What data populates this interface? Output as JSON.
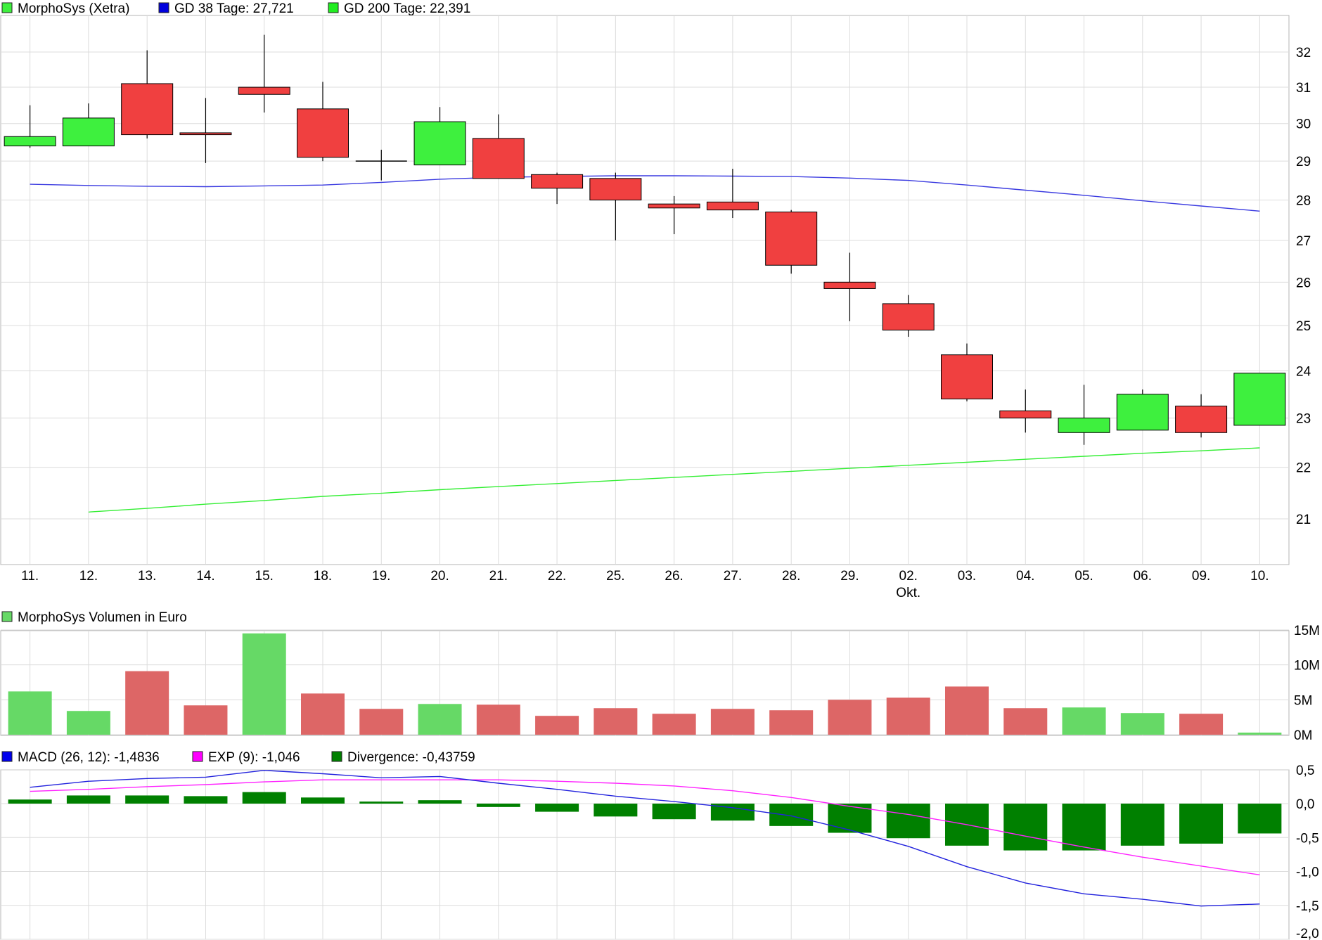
{
  "colors": {
    "up": "#3ef03e",
    "down": "#f04040",
    "gd38": "#3a3ae0",
    "gd200": "#33ee33",
    "vol_up": "#66d966",
    "vol_down": "#dd6666",
    "macd": "#2222dd",
    "exp": "#ff22ff",
    "divergence": "#008000",
    "legend_macd": "#0000ee",
    "legend_exp": "#ff00ff",
    "legend_div": "#008000",
    "grid": "#dcdcdc",
    "frame": "#b4b4b4"
  },
  "chart_data": [
    {
      "type": "candlestick",
      "legend": [
        {
          "label": "MorphoSys (Xetra)",
          "color": "#3ef03e"
        },
        {
          "label": "GD 38 Tage: 27,721",
          "color": "#0000dd"
        },
        {
          "label": "GD 200 Tage: 22,391",
          "color": "#22ee22"
        }
      ],
      "categories": [
        "11.",
        "12.",
        "13.",
        "14.",
        "15.",
        "18.",
        "19.",
        "20.",
        "21.",
        "22.",
        "25.",
        "26.",
        "27.",
        "28.",
        "29.",
        "02.",
        "03.",
        "04.",
        "05.",
        "06.",
        "09.",
        "10."
      ],
      "category_sublabels": {
        "15": "Okt."
      },
      "yticks": [
        "21",
        "22",
        "23",
        "24",
        "25",
        "26",
        "27",
        "28",
        "29",
        "30",
        "31",
        "32"
      ],
      "ylim": [
        20,
        33
      ],
      "y_scale": "log",
      "candles": [
        {
          "open": 29.4,
          "high": 30.5,
          "low": 29.35,
          "close": 29.65
        },
        {
          "open": 29.4,
          "high": 30.55,
          "low": 29.4,
          "close": 30.15
        },
        {
          "open": 31.1,
          "high": 32.05,
          "low": 29.6,
          "close": 29.7
        },
        {
          "open": 29.75,
          "high": 30.7,
          "low": 28.95,
          "close": 29.7
        },
        {
          "open": 31.0,
          "high": 32.5,
          "low": 30.3,
          "close": 30.8
        },
        {
          "open": 30.4,
          "high": 31.15,
          "low": 29.0,
          "close": 29.1
        },
        {
          "open": 29.0,
          "high": 29.3,
          "low": 28.5,
          "close": 29.0
        },
        {
          "open": 28.9,
          "high": 30.45,
          "low": 28.9,
          "close": 30.05
        },
        {
          "open": 29.6,
          "high": 30.25,
          "low": 28.55,
          "close": 28.55
        },
        {
          "open": 28.65,
          "high": 28.7,
          "low": 27.9,
          "close": 28.3
        },
        {
          "open": 28.55,
          "high": 28.7,
          "low": 27.0,
          "close": 28.0
        },
        {
          "open": 27.9,
          "high": 28.1,
          "low": 27.15,
          "close": 27.8
        },
        {
          "open": 27.95,
          "high": 28.8,
          "low": 27.55,
          "close": 27.75
        },
        {
          "open": 27.7,
          "high": 27.75,
          "low": 26.2,
          "close": 26.4
        },
        {
          "open": 26.0,
          "high": 26.7,
          "low": 25.1,
          "close": 25.85
        },
        {
          "open": 25.5,
          "high": 25.7,
          "low": 24.75,
          "close": 24.9
        },
        {
          "open": 24.35,
          "high": 24.6,
          "low": 23.35,
          "close": 23.4
        },
        {
          "open": 23.15,
          "high": 23.6,
          "low": 22.7,
          "close": 23.0
        },
        {
          "open": 22.7,
          "high": 23.7,
          "low": 22.45,
          "close": 23.0
        },
        {
          "open": 22.75,
          "high": 23.6,
          "low": 22.75,
          "close": 23.5
        },
        {
          "open": 23.25,
          "high": 23.5,
          "low": 22.6,
          "close": 22.7
        },
        {
          "open": 22.85,
          "high": 23.95,
          "low": 22.85,
          "close": 23.95
        }
      ],
      "series": [
        {
          "name": "GD 38 Tage",
          "values": [
            28.4,
            28.37,
            28.35,
            28.34,
            28.36,
            28.38,
            28.45,
            28.53,
            28.58,
            28.6,
            28.62,
            28.62,
            28.61,
            28.6,
            28.56,
            28.5,
            28.38,
            28.25,
            28.12,
            27.98,
            27.85,
            27.72
          ]
        },
        {
          "name": "GD 200 Tage",
          "values": [
            null,
            21.13,
            21.2,
            21.28,
            21.35,
            21.43,
            21.49,
            21.56,
            21.62,
            21.68,
            21.74,
            21.8,
            21.86,
            21.92,
            21.98,
            22.04,
            22.1,
            22.16,
            22.22,
            22.28,
            22.33,
            22.39
          ]
        }
      ]
    },
    {
      "type": "bar",
      "legend": [
        {
          "label": "MorphoSys Volumen in Euro",
          "color": "#66d966"
        }
      ],
      "yticks": [
        "0M",
        "5M",
        "10M",
        "15M"
      ],
      "ylim": [
        0,
        15
      ],
      "unit": "M",
      "values": [
        6.2,
        3.4,
        9.1,
        4.2,
        14.5,
        5.9,
        3.7,
        4.4,
        4.3,
        2.7,
        3.8,
        3.0,
        3.7,
        3.5,
        5.0,
        5.3,
        6.9,
        3.8,
        3.9,
        3.1,
        3.0,
        0.3
      ],
      "direction": [
        "up",
        "up",
        "down",
        "down",
        "up",
        "down",
        "down",
        "up",
        "down",
        "down",
        "down",
        "down",
        "down",
        "down",
        "down",
        "down",
        "down",
        "down",
        "up",
        "up",
        "down",
        "up"
      ]
    },
    {
      "type": "bar+line",
      "legend": [
        {
          "label": "MACD (26, 12): -1,4836",
          "color": "#0000ee"
        },
        {
          "label": "EXP (9): -1,046",
          "color": "#ff00ff"
        },
        {
          "label": "Divergence: -0,43759",
          "color": "#008000"
        }
      ],
      "yticks": [
        "-2,0",
        "-1,5",
        "-1,0",
        "-0,5",
        "0,0",
        "0,5"
      ],
      "ylim": [
        -2.0,
        0.5
      ],
      "divergence": [
        0.06,
        0.12,
        0.12,
        0.11,
        0.17,
        0.09,
        0.03,
        0.05,
        -0.05,
        -0.12,
        -0.19,
        -0.23,
        -0.25,
        -0.33,
        -0.43,
        -0.51,
        -0.62,
        -0.69,
        -0.69,
        -0.62,
        -0.59,
        -0.44
      ],
      "series": [
        {
          "name": "MACD",
          "values": [
            0.24,
            0.33,
            0.37,
            0.39,
            0.49,
            0.44,
            0.38,
            0.4,
            0.3,
            0.21,
            0.11,
            0.03,
            -0.06,
            -0.18,
            -0.39,
            -0.63,
            -0.93,
            -1.17,
            -1.33,
            -1.41,
            -1.51,
            -1.48
          ]
        },
        {
          "name": "EXP",
          "values": [
            0.18,
            0.21,
            0.25,
            0.28,
            0.32,
            0.35,
            0.35,
            0.35,
            0.35,
            0.33,
            0.3,
            0.26,
            0.19,
            0.09,
            -0.04,
            -0.16,
            -0.31,
            -0.48,
            -0.64,
            -0.79,
            -0.92,
            -1.05
          ]
        }
      ]
    }
  ]
}
